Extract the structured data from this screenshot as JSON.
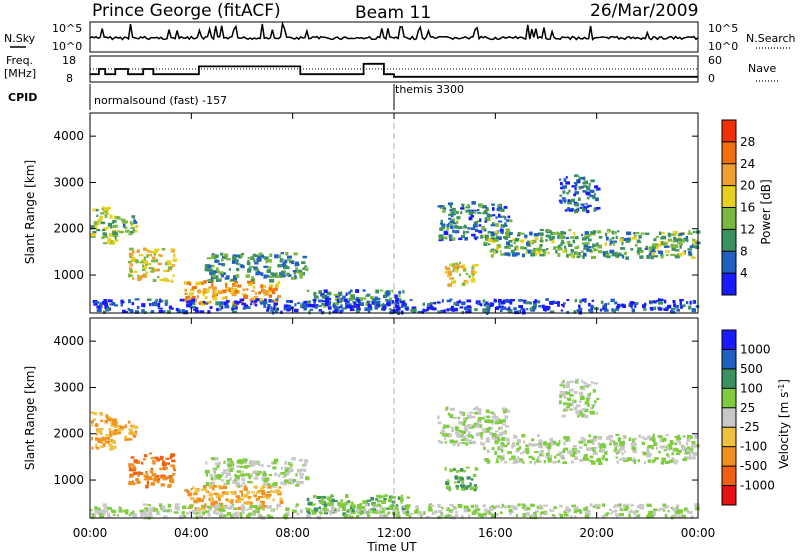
{
  "header": {
    "station": "Prince George (fitACF)",
    "beam": "Beam 11",
    "date": "26/Mar/2009"
  },
  "noise_panel": {
    "left_label": "N.Sky",
    "right_label": "N.Search",
    "left_ticks": [
      "10^5",
      "10^0"
    ],
    "right_ticks": [
      "10^5",
      "10^0"
    ]
  },
  "freq_panel": {
    "left_label_1": "Freq.",
    "left_label_2": "[MHz]",
    "right_label": "Nave",
    "left_ticks": [
      "18",
      "8"
    ],
    "right_ticks": [
      "60",
      "0"
    ],
    "freq_steps_mhz": [
      {
        "t": 0.0,
        "f": 11
      },
      {
        "t": 0.35,
        "f": 13
      },
      {
        "t": 0.6,
        "f": 11
      },
      {
        "t": 1.0,
        "f": 13
      },
      {
        "t": 1.5,
        "f": 11
      },
      {
        "t": 2.1,
        "f": 13
      },
      {
        "t": 2.5,
        "f": 11
      },
      {
        "t": 4.3,
        "f": 14
      },
      {
        "t": 8.3,
        "f": 11
      },
      {
        "t": 10.3,
        "f": 11
      },
      {
        "t": 10.8,
        "f": 15
      },
      {
        "t": 11.6,
        "f": 11
      },
      {
        "t": 12.0,
        "f": 10
      },
      {
        "t": 24.0,
        "f": 10
      }
    ]
  },
  "cpid": {
    "label": "CPID",
    "program_1": "normalsound (fast) -157",
    "program_2": "themis 3300",
    "switch_hour": 12.0
  },
  "axes": {
    "xlabel": "Time UT",
    "ylabel": "Slant Range [km]",
    "x_ticks": [
      "00:00",
      "04:00",
      "08:00",
      "12:00",
      "16:00",
      "20:00",
      "00:00"
    ],
    "y_ticks": [
      "1000",
      "2000",
      "3000",
      "4000"
    ]
  },
  "power_colorbar": {
    "label": "Power [dB]",
    "ticks": [
      "4",
      "8",
      "12",
      "16",
      "20",
      "24",
      "28"
    ],
    "colors": [
      "#1a1aff",
      "#2060c0",
      "#3c9060",
      "#7ab840",
      "#e8d020",
      "#f0a030",
      "#f07010",
      "#f03000"
    ]
  },
  "velocity_colorbar": {
    "label": "Velocity [m s",
    "label_sup": "-1",
    "label_end": "]",
    "ticks": [
      "1000",
      "500",
      "100",
      "25",
      "-25",
      "-100",
      "-500",
      "-1000"
    ],
    "colors": [
      "#1a1aff",
      "#2060c0",
      "#3c9060",
      "#80cc40",
      "#c8c8c8",
      "#f0c040",
      "#f09020",
      "#f06010",
      "#e81010"
    ]
  },
  "chart_data": {
    "type": "heatmap",
    "x_unit": "hour UT",
    "y_unit": "slant range km",
    "xlim": [
      0,
      24
    ],
    "ylim": [
      180,
      4500
    ],
    "echo_regions": [
      {
        "t0": 0.0,
        "t1": 1.0,
        "r0": 1700,
        "r1": 2500,
        "power_db": 14,
        "velocity": -100
      },
      {
        "t0": 0.8,
        "t1": 1.8,
        "r0": 1900,
        "r1": 2300,
        "power_db": 12,
        "velocity": -100
      },
      {
        "t0": 1.5,
        "t1": 3.3,
        "r0": 900,
        "r1": 1600,
        "power_db": 18,
        "velocity": -500
      },
      {
        "t0": 3.7,
        "t1": 7.5,
        "r0": 400,
        "r1": 900,
        "power_db": 22,
        "velocity": -100
      },
      {
        "t0": 4.5,
        "t1": 8.5,
        "r0": 900,
        "r1": 1500,
        "power_db": 10,
        "velocity": 25
      },
      {
        "t0": 13.7,
        "t1": 16.5,
        "r0": 1800,
        "r1": 2600,
        "power_db": 8,
        "velocity": 25
      },
      {
        "t0": 14.0,
        "t1": 15.2,
        "r0": 800,
        "r1": 1300,
        "power_db": 18,
        "velocity": 100
      },
      {
        "t0": 15.5,
        "t1": 24.0,
        "r0": 1400,
        "r1": 2000,
        "power_db": 12,
        "velocity": 25
      },
      {
        "t0": 18.5,
        "t1": 20.0,
        "r0": 2400,
        "r1": 3200,
        "power_db": 6,
        "velocity": 25
      },
      {
        "t0": 8.5,
        "t1": 12.5,
        "r0": 300,
        "r1": 700,
        "power_db": 8,
        "velocity": 100
      },
      {
        "t0": 0.0,
        "t1": 24.0,
        "r0": 180,
        "r1": 500,
        "power_db": 4,
        "velocity": 25
      }
    ]
  }
}
